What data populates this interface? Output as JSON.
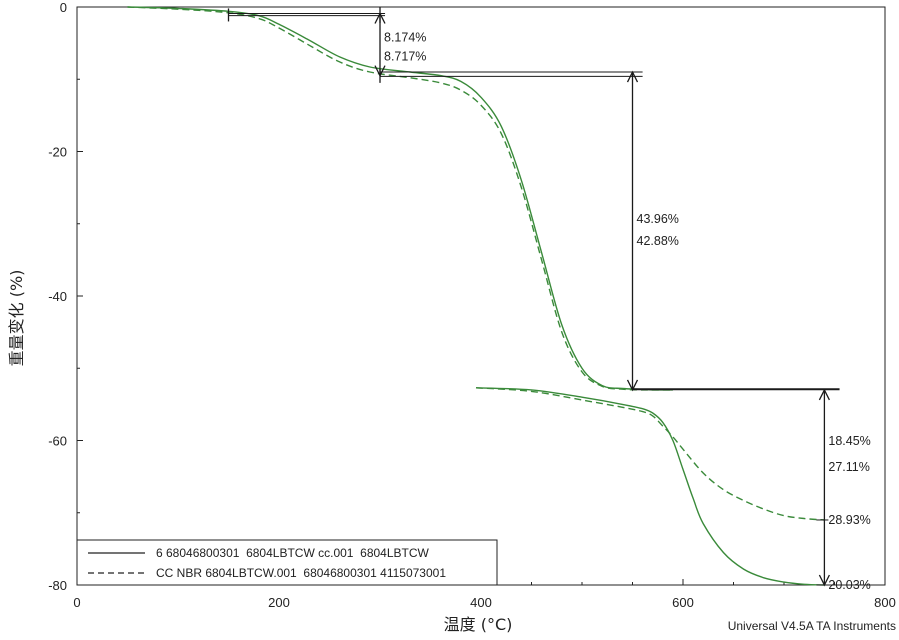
{
  "chart_data": {
    "type": "line",
    "xlabel": "温度 (°C)",
    "ylabel": "重量变化 (%)",
    "xlim": [
      0,
      800
    ],
    "ylim": [
      -80,
      0
    ],
    "x_ticks": [
      "0",
      "200",
      "400",
      "600",
      "800"
    ],
    "y_ticks": [
      "0",
      "-20",
      "-40",
      "-60",
      "-80"
    ],
    "grid": false,
    "legend_position": "bottom-left",
    "footer": "Universal V4.5A TA Instruments",
    "series": [
      {
        "name": "6 68046800301  6804LBTCW cc.001  6804LBTCW",
        "style": "solid",
        "color": "#3a8a3a",
        "segments": [
          {
            "x": [
              50,
              100,
              150,
              180,
              200,
              230,
              260,
              290,
              330,
              360,
              380,
              400,
              420,
              440,
              460,
              480,
              500,
              520,
              540,
              560,
              570,
              590
            ],
            "y": [
              0,
              -0.2,
              -0.6,
              -1.2,
              -2.4,
              -4.6,
              -6.9,
              -8.3,
              -9.0,
              -9.5,
              -10.3,
              -12.5,
              -16.5,
              -24,
              -34,
              -44,
              -50,
              -52.4,
              -52.8,
              -52.9,
              -53.0,
              -53.0
            ]
          },
          {
            "x": [
              395,
              450,
              500,
              540,
              560,
              570,
              580,
              590,
              600,
              610,
              620,
              640,
              660,
              680,
              700,
              720,
              740
            ],
            "y": [
              -52.7,
              -53.0,
              -54.0,
              -55.0,
              -55.6,
              -56.2,
              -57.5,
              -60,
              -64,
              -68,
              -71.5,
              -75.5,
              -77.8,
              -79.0,
              -79.6,
              -79.9,
              -80.0
            ]
          }
        ]
      },
      {
        "name": "CC NBR 6804LBTCW.001  68046800301 4115073001",
        "style": "dashed",
        "color": "#3a8a3a",
        "segments": [
          {
            "x": [
              50,
              100,
              150,
              180,
              200,
              230,
              260,
              290,
              330,
              360,
              380,
              400,
              420,
              440,
              460,
              480,
              500,
              520,
              540,
              560,
              570,
              590
            ],
            "y": [
              0,
              -0.3,
              -0.8,
              -1.6,
              -2.9,
              -5.3,
              -7.6,
              -9.0,
              -9.8,
              -10.5,
              -11.5,
              -13.6,
              -17.5,
              -25,
              -35,
              -45,
              -50.5,
              -52.5,
              -52.9,
              -53.0,
              -53.0,
              -53.0
            ]
          },
          {
            "x": [
              395,
              450,
              500,
              540,
              560,
              570,
              580,
              590,
              600,
              620,
              640,
              660,
              680,
              700,
              720,
              740
            ],
            "y": [
              -52.7,
              -53.2,
              -54.4,
              -55.4,
              -56.0,
              -56.6,
              -58.0,
              -59.5,
              -61.2,
              -64.5,
              -66.8,
              -68.3,
              -69.5,
              -70.4,
              -70.8,
              -71.0
            ]
          }
        ]
      }
    ],
    "annotations": [
      {
        "from": [
          300,
          -0.9
        ],
        "to": [
          300,
          -9.5
        ],
        "labels": [
          "8.174%",
          "8.717%"
        ]
      },
      {
        "from": [
          550,
          -9.0
        ],
        "to": [
          550,
          -53.0
        ],
        "labels": [
          "43.96%",
          "42.88%"
        ]
      },
      {
        "from": [
          740,
          -53.0
        ],
        "to": [
          740,
          -80.0
        ],
        "labels": [
          "18.45%",
          "27.11%"
        ]
      }
    ],
    "end_labels": [
      {
        "x": 740,
        "y": -71.0,
        "text": "28.93%"
      },
      {
        "x": 740,
        "y": -80.0,
        "text": "20.03%"
      }
    ]
  }
}
